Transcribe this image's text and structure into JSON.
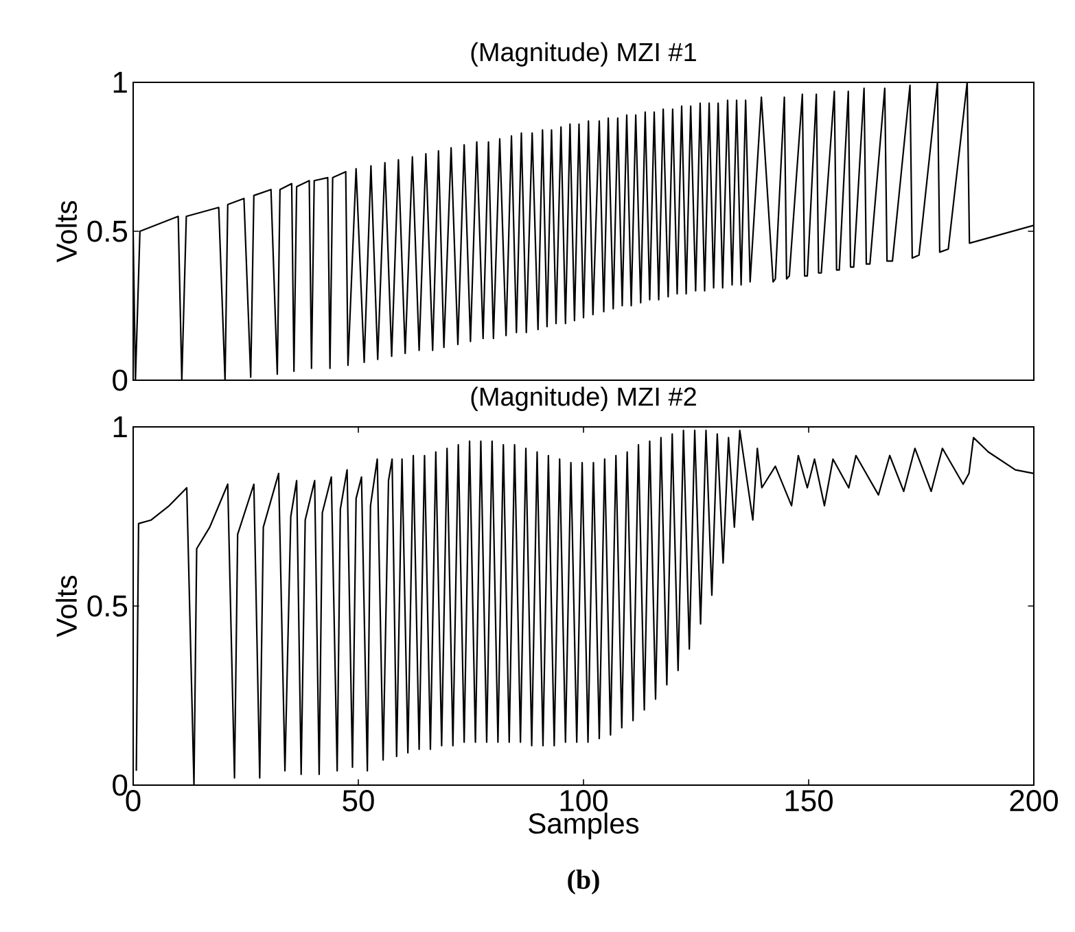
{
  "chart_data": [
    {
      "type": "line",
      "title": "(Magnitude) MZI #1",
      "ylabel": "Volts",
      "xlim": [
        0,
        200
      ],
      "ylim": [
        0,
        1
      ],
      "yticks": [
        0,
        0.5,
        1
      ],
      "tick_labels": "y",
      "series": [
        {
          "color": "#000000",
          "x": [
            0,
            0.5,
            1.5,
            10,
            10.8,
            11.8,
            19.0,
            20.4,
            21,
            24.6,
            26.1,
            26.8,
            30.6,
            32,
            32.6,
            35.2,
            35.7,
            36.3,
            39.1,
            39.6,
            40.2,
            43.2,
            43.7,
            44.3,
            47.2,
            47.7,
            49.5,
            51.3,
            52.8,
            54.3,
            55.9,
            57.4,
            58.9,
            60.4,
            62,
            63.5,
            65,
            66.5,
            67.8,
            69,
            70.6,
            72.1,
            73.5,
            74.9,
            76.3,
            77.7,
            78.9,
            80,
            81.4,
            82.8,
            84,
            85.1,
            86.2,
            87.3,
            88.6,
            89.9,
            90.9,
            91.9,
            92.9,
            93.9,
            95,
            96,
            97,
            98,
            99,
            100,
            101.1,
            102.1,
            103.5,
            104.5,
            105.5,
            106.6,
            107.6,
            108.6,
            109.6,
            110.6,
            111.6,
            112.7,
            113.7,
            114.7,
            115.7,
            116.7,
            117.7,
            118.8,
            119.8,
            120.8,
            121.8,
            122.8,
            123.8,
            124.9,
            125.9,
            126.9,
            127.9,
            128.9,
            129.9,
            130.9,
            132,
            133,
            134,
            135,
            136,
            137,
            139.5,
            142.1,
            142.6,
            144.6,
            145.1,
            145.7,
            148.6,
            149.1,
            149.7,
            151.7,
            152.2,
            152.8,
            155.7,
            156.2,
            156.8,
            158.8,
            159.3,
            160,
            162.3,
            162.8,
            163.6,
            166.9,
            167.4,
            168.6,
            172.5,
            173,
            174.5,
            178.6,
            179.1,
            181,
            185.2,
            185.7,
            200
          ],
          "values": [
            0.49,
            0,
            0.5,
            0.55,
            0,
            0.55,
            0.58,
            0,
            0.59,
            0.61,
            0.01,
            0.62,
            0.64,
            0.02,
            0.64,
            0.66,
            0.03,
            0.65,
            0.67,
            0.04,
            0.67,
            0.68,
            0.04,
            0.68,
            0.7,
            0.05,
            0.71,
            0.06,
            0.72,
            0.07,
            0.73,
            0.08,
            0.74,
            0.09,
            0.75,
            0.1,
            0.76,
            0.1,
            0.77,
            0.11,
            0.78,
            0.12,
            0.79,
            0.13,
            0.8,
            0.14,
            0.8,
            0.14,
            0.81,
            0.15,
            0.82,
            0.16,
            0.83,
            0.16,
            0.83,
            0.17,
            0.84,
            0.18,
            0.84,
            0.19,
            0.85,
            0.19,
            0.86,
            0.2,
            0.86,
            0.21,
            0.87,
            0.22,
            0.87,
            0.23,
            0.88,
            0.24,
            0.88,
            0.25,
            0.89,
            0.25,
            0.89,
            0.26,
            0.9,
            0.27,
            0.9,
            0.27,
            0.91,
            0.28,
            0.91,
            0.29,
            0.92,
            0.29,
            0.92,
            0.3,
            0.93,
            0.3,
            0.93,
            0.31,
            0.93,
            0.31,
            0.94,
            0.32,
            0.94,
            0.32,
            0.94,
            0.33,
            0.95,
            0.33,
            0.34,
            0.95,
            0.34,
            0.35,
            0.96,
            0.35,
            0.35,
            0.96,
            0.36,
            0.36,
            0.97,
            0.37,
            0.37,
            0.97,
            0.38,
            0.38,
            0.98,
            0.39,
            0.39,
            0.98,
            0.4,
            0.4,
            0.99,
            0.41,
            0.42,
            1.0,
            0.43,
            0.44,
            1.0,
            0.46,
            0.52
          ]
        }
      ]
    },
    {
      "type": "line",
      "title": "(Magnitude) MZI #2",
      "ylabel": "Volts",
      "xlabel": "Samples",
      "xlim": [
        0,
        200
      ],
      "xticks": [
        0,
        50,
        100,
        150,
        200
      ],
      "ylim": [
        0,
        1
      ],
      "yticks": [
        0,
        0.5,
        1
      ],
      "annotations": [
        "(b)"
      ],
      "series": [
        {
          "color": "#000000",
          "x": [
            0.7,
            1.2,
            4,
            8,
            11.9,
            13.5,
            14.1,
            17,
            21.0,
            22.5,
            23.2,
            26.8,
            28.1,
            28.9,
            32.3,
            33.7,
            35,
            36.3,
            37.3,
            38.2,
            40.3,
            41.3,
            42,
            44,
            45.3,
            46,
            47.5,
            48.7,
            49.5,
            50.7,
            52,
            52.7,
            54.2,
            55.5,
            56.7,
            57.5,
            58.5,
            59.7,
            61,
            62.2,
            63.5,
            64.7,
            66,
            67.2,
            68.5,
            69.7,
            71,
            72.2,
            73.5,
            74.7,
            76,
            77.2,
            78.5,
            79.7,
            81,
            82.2,
            83.5,
            84.7,
            86,
            87.2,
            88.5,
            89.7,
            91,
            92.2,
            93.5,
            94.7,
            96,
            97.2,
            98.5,
            99.7,
            101,
            102.2,
            103.5,
            104.7,
            106,
            107.2,
            108.5,
            109.7,
            111,
            112.2,
            113.5,
            114.7,
            116,
            117.2,
            118.5,
            119.7,
            121,
            122.2,
            123.5,
            124.7,
            126,
            127.2,
            128.5,
            129.7,
            131,
            132.2,
            133.5,
            134.7,
            137.6,
            138.6,
            139.6,
            142.6,
            146.2,
            147.7,
            149.7,
            151.3,
            153.5,
            155.4,
            158.9,
            160.5,
            165.5,
            168,
            171.1,
            173.6,
            177.2,
            179.7,
            184.3,
            185.6,
            186.6,
            189.9,
            195.9,
            200
          ],
          "values": [
            0.04,
            0.73,
            0.74,
            0.78,
            0.83,
            0.0,
            0.66,
            0.72,
            0.84,
            0.02,
            0.7,
            0.84,
            0.02,
            0.72,
            0.87,
            0.04,
            0.75,
            0.85,
            0.03,
            0.74,
            0.85,
            0.03,
            0.76,
            0.86,
            0.04,
            0.77,
            0.88,
            0.05,
            0.8,
            0.86,
            0.04,
            0.78,
            0.91,
            0.07,
            0.85,
            0.91,
            0.08,
            0.91,
            0.09,
            0.92,
            0.1,
            0.92,
            0.1,
            0.93,
            0.11,
            0.94,
            0.11,
            0.95,
            0.12,
            0.96,
            0.12,
            0.96,
            0.12,
            0.96,
            0.12,
            0.95,
            0.12,
            0.95,
            0.12,
            0.94,
            0.11,
            0.93,
            0.11,
            0.92,
            0.11,
            0.91,
            0.12,
            0.9,
            0.12,
            0.9,
            0.12,
            0.9,
            0.13,
            0.91,
            0.14,
            0.92,
            0.16,
            0.93,
            0.18,
            0.95,
            0.21,
            0.96,
            0.24,
            0.97,
            0.28,
            0.98,
            0.32,
            0.99,
            0.38,
            0.99,
            0.45,
            0.99,
            0.53,
            0.98,
            0.62,
            0.97,
            0.72,
            0.99,
            0.74,
            0.94,
            0.83,
            0.89,
            0.78,
            0.92,
            0.83,
            0.91,
            0.78,
            0.91,
            0.83,
            0.92,
            0.81,
            0.92,
            0.82,
            0.94,
            0.82,
            0.94,
            0.84,
            0.87,
            0.97,
            0.93,
            0.88,
            0.87
          ]
        }
      ]
    }
  ]
}
